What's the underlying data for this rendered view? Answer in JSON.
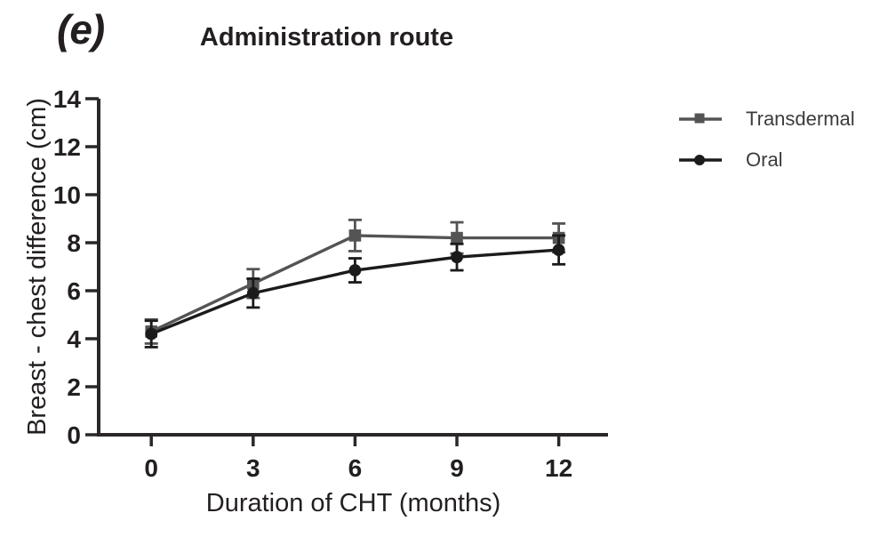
{
  "figure": {
    "panel_label": "(e)"
  },
  "chart_data": {
    "type": "line",
    "title": "Administration route",
    "xlabel": "Duration of CHT (months)",
    "ylabel": "Breast - chest difference (cm)",
    "x": [
      0,
      3,
      6,
      9,
      12
    ],
    "xticks": [
      "0",
      "3",
      "6",
      "9",
      "12"
    ],
    "yticks": [
      "0",
      "2",
      "4",
      "6",
      "8",
      "10",
      "12",
      "14"
    ],
    "xlim": [
      -1.55,
      13.45
    ],
    "ylim": [
      0,
      14
    ],
    "grid": false,
    "error_bars": true,
    "legend_position": "right",
    "series": [
      {
        "name": "Transdermal",
        "marker": "square",
        "color": "#545454",
        "values": [
          4.3,
          6.3,
          8.3,
          8.2,
          8.2
        ],
        "errors": [
          0.5,
          0.6,
          0.65,
          0.65,
          0.6
        ]
      },
      {
        "name": "Oral",
        "marker": "circle",
        "color": "#1b1b1b",
        "values": [
          4.2,
          5.9,
          6.85,
          7.4,
          7.7
        ],
        "errors": [
          0.55,
          0.6,
          0.5,
          0.55,
          0.6
        ]
      }
    ]
  },
  "colors": {
    "axis": "#2b2728",
    "text": "#231f20",
    "legend_text": "#3c3c3c",
    "background": "#ffffff"
  }
}
